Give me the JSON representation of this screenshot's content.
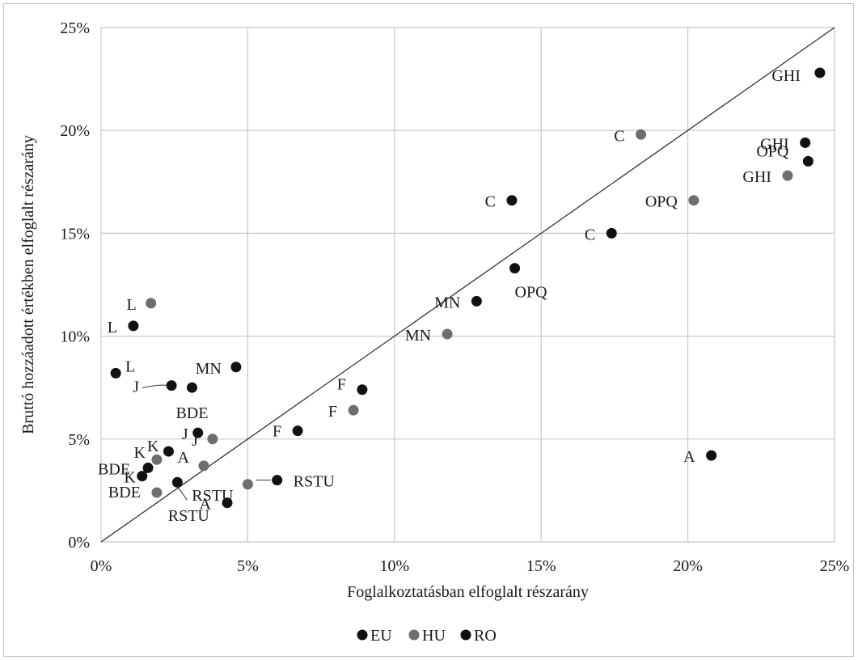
{
  "chart_data": {
    "type": "scatter",
    "xlabel": "Foglalkoztatásban elfoglalt részarány",
    "ylabel": "Bruttó hozzáadott értékben elfoglalt részarány",
    "xlim": [
      0,
      25
    ],
    "ylim": [
      0,
      25
    ],
    "x_ticks": [
      "0%",
      "5%",
      "10%",
      "15%",
      "20%",
      "25%"
    ],
    "y_ticks": [
      "0%",
      "5%",
      "10%",
      "15%",
      "20%",
      "25%"
    ],
    "grid": true,
    "reference_line": "y = x",
    "legend_position": "bottom",
    "series": [
      {
        "name": "EU",
        "color": "#111111",
        "points": [
          {
            "label": "GHI",
            "x": 24.5,
            "y": 22.8
          },
          {
            "label": "OPQ",
            "x": 24.1,
            "y": 18.5
          },
          {
            "label": "C",
            "x": 17.4,
            "y": 15.0
          },
          {
            "label": "A",
            "x": 20.8,
            "y": 4.2
          },
          {
            "label": "MN",
            "x": 12.8,
            "y": 11.7
          },
          {
            "label": "F",
            "x": 6.7,
            "y": 5.4
          },
          {
            "label": "RSTU",
            "x": 6.0,
            "y": 3.0
          },
          {
            "label": "L",
            "x": 0.5,
            "y": 8.2
          },
          {
            "label": "J",
            "x": 3.3,
            "y": 5.3
          },
          {
            "label": "K",
            "x": 2.3,
            "y": 4.4
          },
          {
            "label": "BDE",
            "x": 1.6,
            "y": 3.6
          }
        ]
      },
      {
        "name": "HU",
        "color": "#6e6e6e",
        "points": [
          {
            "label": "C",
            "x": 18.4,
            "y": 19.8
          },
          {
            "label": "GHI",
            "x": 23.4,
            "y": 17.8
          },
          {
            "label": "OPQ",
            "x": 20.2,
            "y": 16.6
          },
          {
            "label": "MN",
            "x": 11.8,
            "y": 10.1
          },
          {
            "label": "F",
            "x": 8.6,
            "y": 6.4
          },
          {
            "label": "L",
            "x": 1.7,
            "y": 11.6
          },
          {
            "label": "J",
            "x": 3.8,
            "y": 5.0
          },
          {
            "label": "K",
            "x": 1.9,
            "y": 4.0
          },
          {
            "label": "A",
            "x": 3.5,
            "y": 3.7
          },
          {
            "label": "RSTU",
            "x": 5.0,
            "y": 2.8
          },
          {
            "label": "BDE",
            "x": 1.9,
            "y": 2.4
          }
        ]
      },
      {
        "name": "RO",
        "color": "#111111",
        "points": [
          {
            "label": "GHI",
            "x": 24.0,
            "y": 19.4
          },
          {
            "label": "C",
            "x": 14.0,
            "y": 16.6
          },
          {
            "label": "OPQ",
            "x": 14.1,
            "y": 13.3
          },
          {
            "label": "F",
            "x": 8.9,
            "y": 7.4
          },
          {
            "label": "L",
            "x": 1.1,
            "y": 10.5
          },
          {
            "label": "MN",
            "x": 4.6,
            "y": 8.5
          },
          {
            "label": "BDE",
            "x": 3.1,
            "y": 7.5
          },
          {
            "label": "J",
            "x": 2.4,
            "y": 7.6
          },
          {
            "label": "K",
            "x": 1.4,
            "y": 3.2
          },
          {
            "label": "RSTU",
            "x": 2.6,
            "y": 2.9
          },
          {
            "label": "A",
            "x": 4.3,
            "y": 1.9
          }
        ]
      }
    ]
  }
}
